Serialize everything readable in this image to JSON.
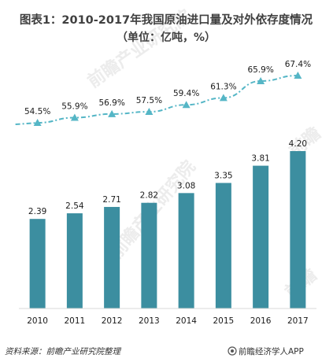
{
  "chart_data": {
    "type": "bar",
    "title": "图表1：2010-2017年我国原油进口量及对外依存度情况",
    "subtitle": "（单位：亿吨，%）",
    "categories": [
      "2010",
      "2011",
      "2012",
      "2013",
      "2014",
      "2015",
      "2016",
      "2017"
    ],
    "series": [
      {
        "values": [
          2.39,
          2.54,
          2.71,
          2.82,
          3.08,
          3.35,
          3.81,
          4.2
        ],
        "display": [
          "2.39",
          "2.54",
          "2.71",
          "2.82",
          "3.08",
          "3.35",
          "3.81",
          "4.20"
        ]
      },
      {
        "type": "line",
        "values": [
          54.5,
          55.9,
          56.9,
          57.5,
          59.4,
          61.3,
          65.9,
          67.4
        ],
        "display": [
          "54.5%",
          "55.9%",
          "56.9%",
          "57.5%",
          "59.4%",
          "61.3%",
          "65.9%",
          "67.4%"
        ]
      }
    ],
    "colors": {
      "bar": "#3c8ea0",
      "line": "#55b6c6",
      "axis": "#d9d9d9"
    }
  },
  "footer": {
    "source": "资料来源：前瞻产业研究院整理",
    "brand": "前瞻经济学人APP"
  },
  "watermark": {
    "text": "前瞻产业研究院",
    "short": "前瞻"
  },
  "icons": [
    "brand-logo-icon"
  ]
}
